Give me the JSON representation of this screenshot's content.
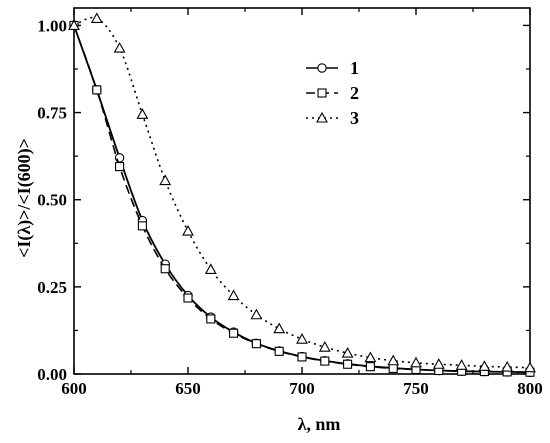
{
  "chart_data": {
    "type": "line",
    "title": "",
    "xlabel": "λ, nm",
    "ylabel": "<I(λ)>/<I(600)>",
    "xlim": [
      600,
      800
    ],
    "ylim": [
      0,
      1.05
    ],
    "x_ticks": [
      600,
      650,
      700,
      750,
      800
    ],
    "x_tick_labels": [
      "600",
      "650",
      "700",
      "750",
      "800"
    ],
    "y_ticks": [
      0,
      0.25,
      0.5,
      0.75,
      1.0
    ],
    "y_tick_labels": [
      "0.00",
      "0.25",
      "0.50",
      "0.75",
      "1.00"
    ],
    "grid": false,
    "legend_position": "top-right",
    "x": [
      600,
      610,
      620,
      630,
      640,
      650,
      660,
      670,
      680,
      690,
      700,
      710,
      720,
      730,
      740,
      750,
      760,
      770,
      780,
      790,
      800
    ],
    "series": [
      {
        "name": "1",
        "line_style": "solid",
        "marker": "circle",
        "color": "#000000",
        "values": [
          1.0,
          0.815,
          0.62,
          0.44,
          0.315,
          0.225,
          0.163,
          0.12,
          0.088,
          0.066,
          0.05,
          0.038,
          0.029,
          0.022,
          0.017,
          0.013,
          0.01,
          0.008,
          0.007,
          0.006,
          0.005
        ]
      },
      {
        "name": "2",
        "line_style": "dashed",
        "marker": "square",
        "color": "#000000",
        "values": [
          1.0,
          0.815,
          0.595,
          0.425,
          0.302,
          0.218,
          0.158,
          0.117,
          0.087,
          0.065,
          0.049,
          0.037,
          0.028,
          0.021,
          0.016,
          0.013,
          0.01,
          0.008,
          0.007,
          0.006,
          0.005
        ]
      },
      {
        "name": "3",
        "line_style": "dotted",
        "marker": "triangle",
        "color": "#000000",
        "values": [
          1.0,
          1.02,
          0.935,
          0.745,
          0.555,
          0.41,
          0.3,
          0.225,
          0.17,
          0.13,
          0.1,
          0.077,
          0.06,
          0.047,
          0.038,
          0.032,
          0.028,
          0.025,
          0.022,
          0.02,
          0.018
        ]
      }
    ]
  }
}
